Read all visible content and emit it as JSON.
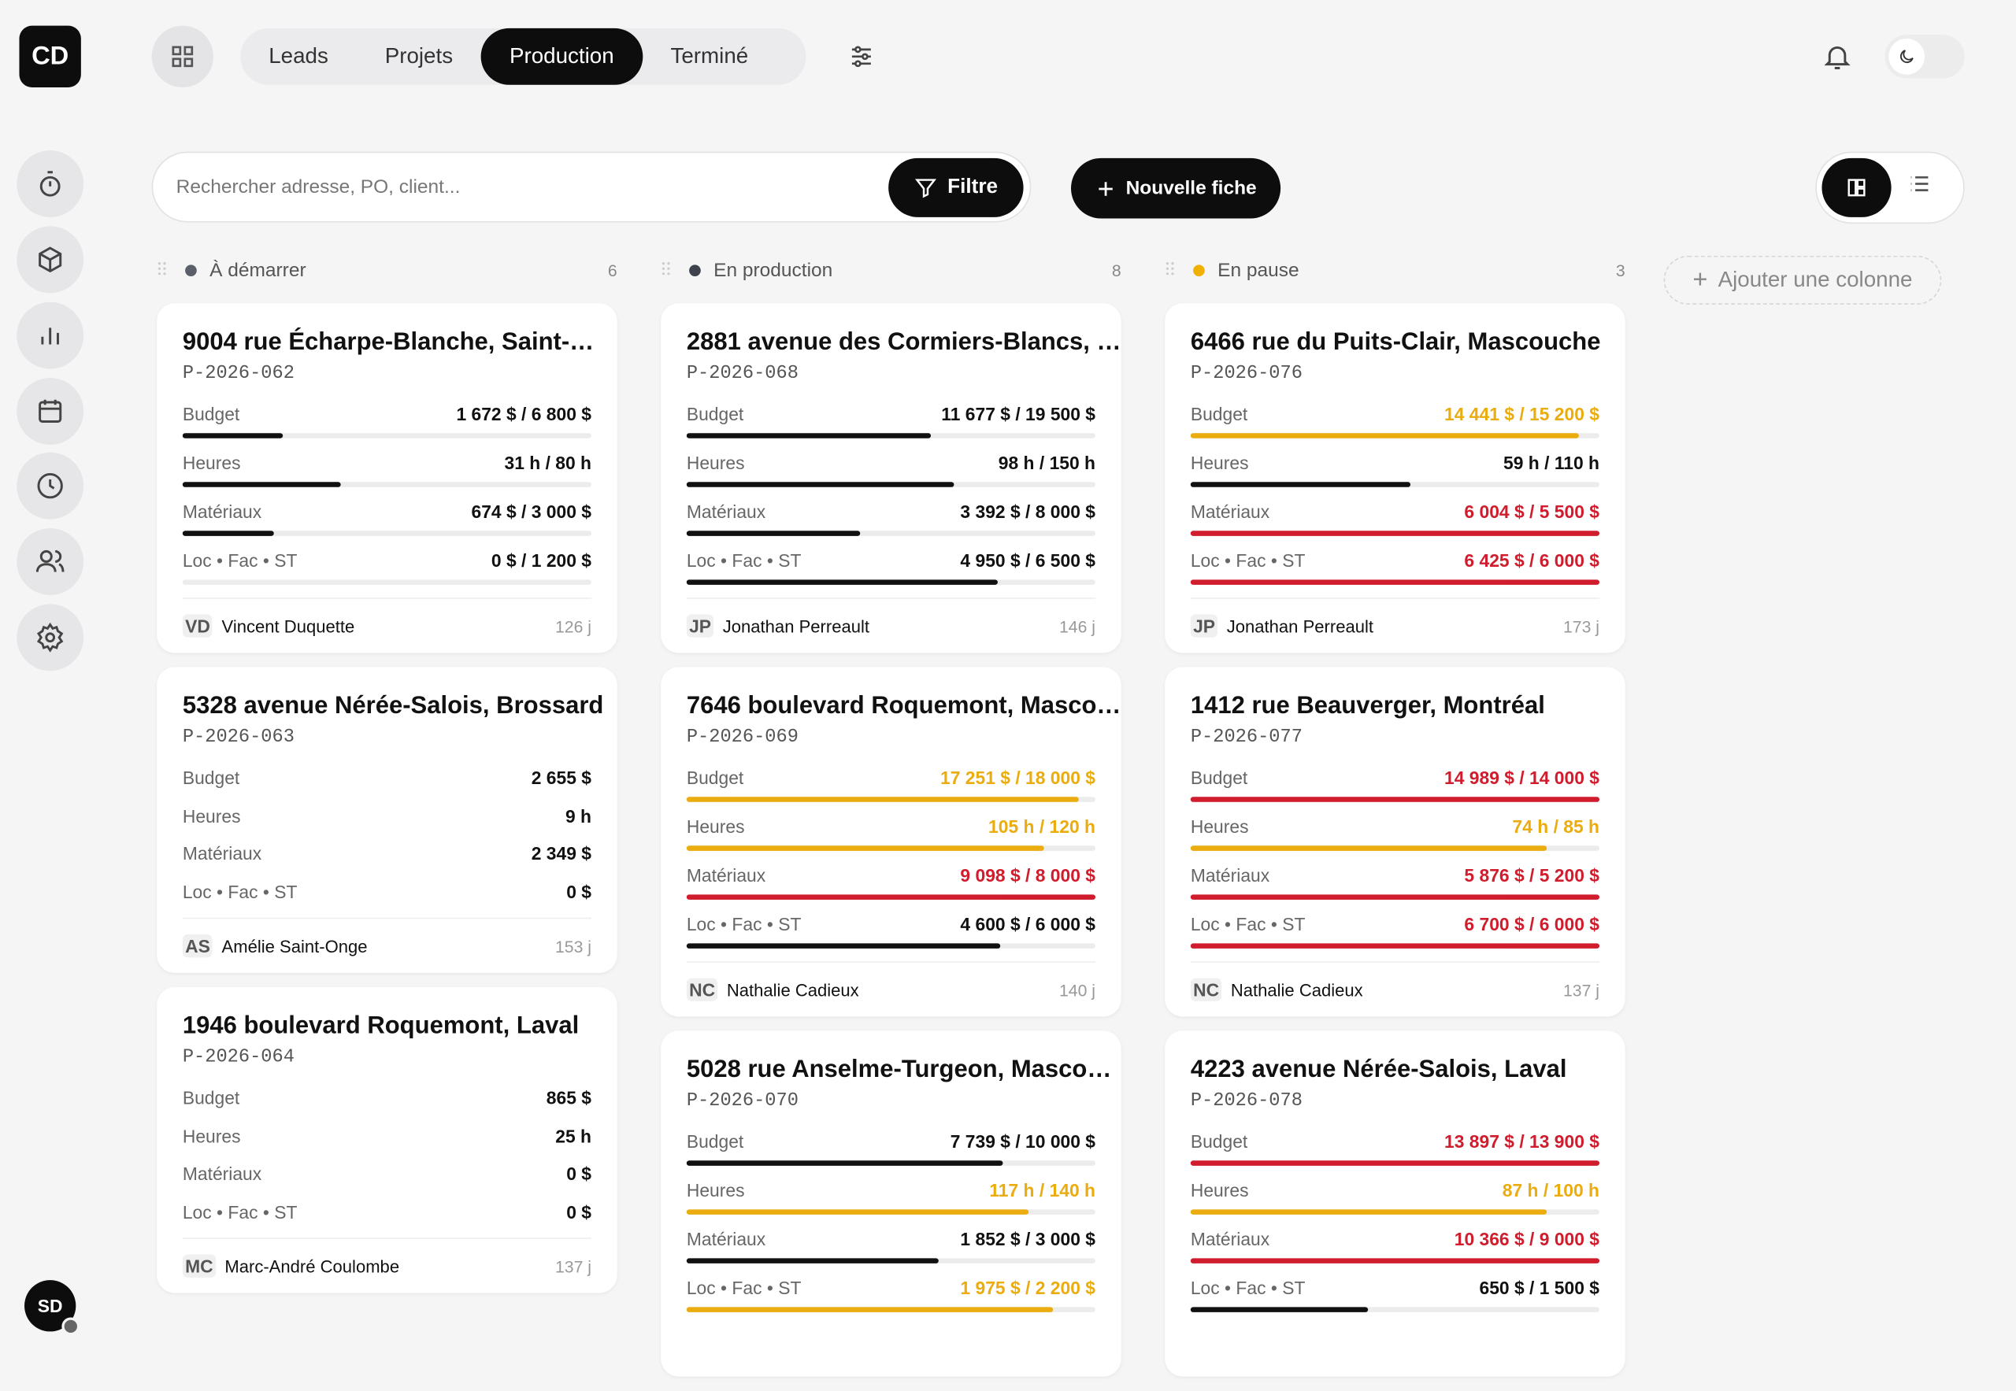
{
  "nav": {
    "logo": "CD",
    "tabs": [
      "Leads",
      "Projets",
      "Production",
      "Terminé"
    ],
    "active_tab": "Production",
    "user": "SD"
  },
  "toolbar": {
    "search_placeholder": "Rechercher adresse, PO, client...",
    "filter": "Filtre",
    "new": "Nouvelle fiche"
  },
  "add_column": "Ajouter une colonne",
  "columns": [
    {
      "title": "À démarrer",
      "count": "6",
      "dot_color": "#5a5f6a",
      "cards": [
        {
          "address": "9004 rue Écharpe-Blanche, Saint-…",
          "po": "P-2026-062",
          "metrics": [
            {
              "label": "Budget",
              "value": "1 672 $ / 6 800 $",
              "color": "#111111"
            },
            {
              "label": "Heures",
              "value": "31 h / 80 h",
              "color": "#111111"
            },
            {
              "label": "Matériaux",
              "value": "674 $ / 3 000 $",
              "color": "#111111"
            },
            {
              "label": "Loc • Fac • ST",
              "value": "0 $ / 1 200 $",
              "color": "#111111"
            }
          ],
          "initials": "VD",
          "owner": "Vincent Duquette",
          "days": "126 j"
        },
        {
          "address": "5328 avenue Nérée-Salois, Brossard",
          "po": "P-2026-063",
          "metrics": [
            {
              "label": "Budget",
              "value": "2 655 $",
              "color": "#111111"
            },
            {
              "label": "Heures",
              "value": "9 h",
              "color": "#111111"
            },
            {
              "label": "Matériaux",
              "value": "2 349 $",
              "color": "#111111"
            },
            {
              "label": "Loc • Fac • ST",
              "value": "0 $",
              "color": "#111111"
            }
          ],
          "initials": "AS",
          "owner": "Amélie Saint-Onge",
          "days": "153 j"
        },
        {
          "address": "1946 boulevard Roquemont, Laval",
          "po": "P-2026-064",
          "metrics": [
            {
              "label": "Budget",
              "value": "865 $",
              "color": "#111111"
            },
            {
              "label": "Heures",
              "value": "25 h",
              "color": "#111111"
            },
            {
              "label": "Matériaux",
              "value": "0 $",
              "color": "#111111"
            },
            {
              "label": "Loc • Fac • ST",
              "value": "0 $",
              "color": "#111111"
            }
          ],
          "initials": "MC",
          "owner": "Marc-André Coulombe",
          "days": "137 j"
        }
      ]
    },
    {
      "title": "En production",
      "count": "8",
      "dot_color": "#3d424c",
      "cards": [
        {
          "address": "2881 avenue des Cormiers-Blancs, …",
          "po": "P-2026-068",
          "metrics": [
            {
              "label": "Budget",
              "value": "11 677 $ / 19 500 $",
              "color": "#111111"
            },
            {
              "label": "Heures",
              "value": "98 h / 150 h",
              "color": "#111111"
            },
            {
              "label": "Matériaux",
              "value": "3 392 $ / 8 000 $",
              "color": "#111111"
            },
            {
              "label": "Loc • Fac • ST",
              "value": "4 950 $ / 6 500 $",
              "color": "#111111"
            }
          ],
          "initials": "JP",
          "owner": "Jonathan Perreault",
          "days": "146 j"
        },
        {
          "address": "7646 boulevard Roquemont, Masco…",
          "po": "P-2026-069",
          "metrics": [
            {
              "label": "Budget",
              "value": "17 251 $ / 18 000 $",
              "color": "#eaac0e"
            },
            {
              "label": "Heures",
              "value": "105 h / 120 h",
              "color": "#eaac0e"
            },
            {
              "label": "Matériaux",
              "value": "9 098 $ / 8 000 $",
              "color": "#d01c2c"
            },
            {
              "label": "Loc • Fac • ST",
              "value": "4 600 $ / 6 000 $",
              "color": "#111111"
            }
          ],
          "initials": "NC",
          "owner": "Nathalie Cadieux",
          "days": "140 j"
        },
        {
          "address": "5028 rue Anselme-Turgeon, Masco…",
          "po": "P-2026-070",
          "metrics": [
            {
              "label": "Budget",
              "value": "7 739 $ / 10 000 $",
              "color": "#111111"
            },
            {
              "label": "Heures",
              "value": "117 h / 140 h",
              "color": "#eaac0e"
            },
            {
              "label": "Matériaux",
              "value": "1 852 $ / 3 000 $",
              "color": "#111111"
            },
            {
              "label": "Loc • Fac • ST",
              "value": "1 975 $ / 2 200 $",
              "color": "#eaac0e"
            }
          ]
        }
      ]
    },
    {
      "title": "En pause",
      "count": "3",
      "dot_color": "#f0b000",
      "cards": [
        {
          "address": "6466 rue du Puits-Clair, Mascouche",
          "po": "P-2026-076",
          "metrics": [
            {
              "label": "Budget",
              "value": "14 441 $ / 15 200 $",
              "color": "#eaac0e"
            },
            {
              "label": "Heures",
              "value": "59 h / 110 h",
              "color": "#111111"
            },
            {
              "label": "Matériaux",
              "value": "6 004 $ / 5 500 $",
              "color": "#d01c2c"
            },
            {
              "label": "Loc • Fac • ST",
              "value": "6 425 $ / 6 000 $",
              "color": "#d01c2c"
            }
          ],
          "initials": "JP",
          "owner": "Jonathan Perreault",
          "days": "173 j"
        },
        {
          "address": "1412 rue Beauverger, Montréal",
          "po": "P-2026-077",
          "metrics": [
            {
              "label": "Budget",
              "value": "14 989 $ / 14 000 $",
              "color": "#d01c2c"
            },
            {
              "label": "Heures",
              "value": "74 h / 85 h",
              "color": "#eaac0e"
            },
            {
              "label": "Matériaux",
              "value": "5 876 $ / 5 200 $",
              "color": "#d01c2c"
            },
            {
              "label": "Loc • Fac • ST",
              "value": "6 700 $ / 6 000 $",
              "color": "#d01c2c"
            }
          ],
          "initials": "NC",
          "owner": "Nathalie Cadieux",
          "days": "137 j"
        },
        {
          "address": "4223 avenue Nérée-Salois, Laval",
          "po": "P-2026-078",
          "metrics": [
            {
              "label": "Budget",
              "value": "13 897 $ / 13 900 $",
              "color": "#d01c2c"
            },
            {
              "label": "Heures",
              "value": "87 h / 100 h",
              "color": "#eaac0e"
            },
            {
              "label": "Matériaux",
              "value": "10 366 $ / 9 000 $",
              "color": "#d01c2c"
            },
            {
              "label": "Loc • Fac • ST",
              "value": "650 $ / 1 500 $",
              "color": "#111111"
            }
          ]
        }
      ]
    }
  ]
}
